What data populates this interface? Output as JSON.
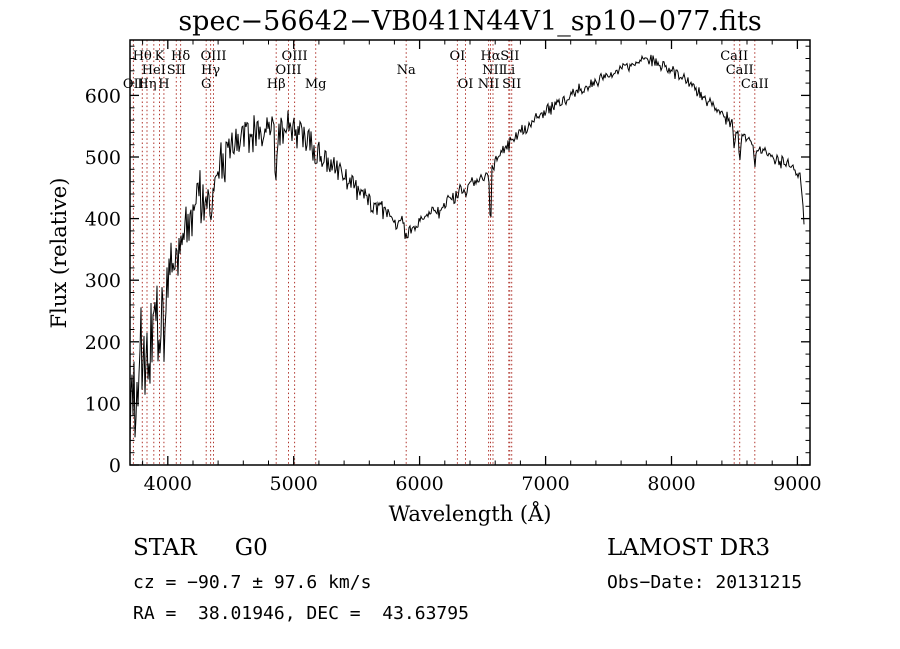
{
  "chart_data": {
    "type": "line",
    "title": "spec−56642−VB041N44V1_sp10−077.fits",
    "xlabel": "Wavelength (Å)",
    "ylabel": "Flux (relative)",
    "xlim": [
      3700,
      9100
    ],
    "ylim": [
      0,
      690
    ],
    "xticks": [
      4000,
      5000,
      6000,
      7000,
      8000,
      9000
    ],
    "yticks": [
      0,
      100,
      200,
      300,
      400,
      500,
      600
    ],
    "x_minor_step": 200,
    "y_minor_step": 20,
    "grid": false,
    "line_color": "#000000",
    "marker_color": "#b0342c",
    "noise_seed": 56642,
    "spectral_lines": [
      {
        "label": "OII",
        "wavelength": 3727,
        "row": 2
      },
      {
        "label": "Hθ",
        "wavelength": 3798,
        "row": 0
      },
      {
        "label": "Hη",
        "wavelength": 3835,
        "row": 2
      },
      {
        "label": "HeI",
        "wavelength": 3889,
        "row": 1
      },
      {
        "label": "K",
        "wavelength": 3934,
        "row": 0
      },
      {
        "label": "H",
        "wavelength": 3969,
        "row": 2
      },
      {
        "label": "SII",
        "wavelength": 4068,
        "row": 1
      },
      {
        "label": "Hδ",
        "wavelength": 4102,
        "row": 0
      },
      {
        "label": "G",
        "wavelength": 4305,
        "row": 2
      },
      {
        "label": "Hγ",
        "wavelength": 4340,
        "row": 1
      },
      {
        "label": "OIII",
        "wavelength": 4363,
        "row": 0
      },
      {
        "label": "Hβ",
        "wavelength": 4861,
        "row": 2
      },
      {
        "label": "OIII",
        "wavelength": 4959,
        "row": 1
      },
      {
        "label": "OIII",
        "wavelength": 5007,
        "row": 0
      },
      {
        "label": "Mg",
        "wavelength": 5175,
        "row": 2
      },
      {
        "label": "Na",
        "wavelength": 5893,
        "row": 1
      },
      {
        "label": "OI",
        "wavelength": 6300,
        "row": 0
      },
      {
        "label": "OI",
        "wavelength": 6364,
        "row": 2
      },
      {
        "label": "NII",
        "wavelength": 6548,
        "row": 2
      },
      {
        "label": "Hα",
        "wavelength": 6563,
        "row": 0
      },
      {
        "label": "NII",
        "wavelength": 6583,
        "row": 1
      },
      {
        "label": "Li",
        "wavelength": 6708,
        "row": 1
      },
      {
        "label": "SII",
        "wavelength": 6716,
        "row": 0
      },
      {
        "label": "SII",
        "wavelength": 6731,
        "row": 2
      },
      {
        "label": "CaII",
        "wavelength": 8498,
        "row": 0
      },
      {
        "label": "CaII",
        "wavelength": 8542,
        "row": 1
      },
      {
        "label": "CaII",
        "wavelength": 8662,
        "row": 2
      }
    ],
    "flux_points": [
      [
        3700,
        15
      ],
      [
        3715,
        90
      ],
      [
        3730,
        140
      ],
      [
        3745,
        110
      ],
      [
        3760,
        150
      ],
      [
        3780,
        165
      ],
      [
        3800,
        175
      ],
      [
        3830,
        180
      ],
      [
        3860,
        195
      ],
      [
        3900,
        235
      ],
      [
        3950,
        265
      ],
      [
        4000,
        300
      ],
      [
        4050,
        330
      ],
      [
        4100,
        370
      ],
      [
        4150,
        400
      ],
      [
        4200,
        418
      ],
      [
        4250,
        438
      ],
      [
        4300,
        452
      ],
      [
        4350,
        458
      ],
      [
        4400,
        472
      ],
      [
        4450,
        492
      ],
      [
        4500,
        508
      ],
      [
        4550,
        522
      ],
      [
        4600,
        545
      ],
      [
        4650,
        540
      ],
      [
        4700,
        536
      ],
      [
        4750,
        540
      ],
      [
        4800,
        546
      ],
      [
        4861,
        538
      ],
      [
        4900,
        550
      ],
      [
        4950,
        547
      ],
      [
        5000,
        542
      ],
      [
        5050,
        537
      ],
      [
        5100,
        528
      ],
      [
        5150,
        518
      ],
      [
        5200,
        508
      ],
      [
        5250,
        498
      ],
      [
        5300,
        488
      ],
      [
        5350,
        478
      ],
      [
        5400,
        468
      ],
      [
        5450,
        458
      ],
      [
        5500,
        448
      ],
      [
        5550,
        438
      ],
      [
        5600,
        428
      ],
      [
        5650,
        420
      ],
      [
        5700,
        412
      ],
      [
        5750,
        405
      ],
      [
        5800,
        398
      ],
      [
        5850,
        392
      ],
      [
        5900,
        387
      ],
      [
        5950,
        388
      ],
      [
        6000,
        393
      ],
      [
        6050,
        399
      ],
      [
        6100,
        406
      ],
      [
        6150,
        413
      ],
      [
        6200,
        421
      ],
      [
        6250,
        429
      ],
      [
        6300,
        437
      ],
      [
        6350,
        445
      ],
      [
        6400,
        453
      ],
      [
        6450,
        461
      ],
      [
        6500,
        469
      ],
      [
        6550,
        477
      ],
      [
        6600,
        492
      ],
      [
        6650,
        506
      ],
      [
        6700,
        519
      ],
      [
        6750,
        531
      ],
      [
        6800,
        541
      ],
      [
        6850,
        549
      ],
      [
        6900,
        557
      ],
      [
        6950,
        565
      ],
      [
        7000,
        573
      ],
      [
        7100,
        587
      ],
      [
        7200,
        600
      ],
      [
        7300,
        612
      ],
      [
        7400,
        623
      ],
      [
        7500,
        633
      ],
      [
        7600,
        642
      ],
      [
        7700,
        651
      ],
      [
        7800,
        657
      ],
      [
        7900,
        653
      ],
      [
        8000,
        641
      ],
      [
        8100,
        626
      ],
      [
        8200,
        609
      ],
      [
        8300,
        590
      ],
      [
        8400,
        570
      ],
      [
        8500,
        550
      ],
      [
        8600,
        530
      ],
      [
        8700,
        513
      ],
      [
        8800,
        500
      ],
      [
        8900,
        488
      ],
      [
        9000,
        477
      ],
      [
        9025,
        468
      ],
      [
        9045,
        420
      ],
      [
        9060,
        365
      ]
    ],
    "absorption_lines": [
      {
        "center": 3934,
        "depth": 60,
        "sigma": 8
      },
      {
        "center": 3969,
        "depth": 60,
        "sigma": 8
      },
      {
        "center": 4102,
        "depth": 55,
        "sigma": 9
      },
      {
        "center": 4340,
        "depth": 50,
        "sigma": 9
      },
      {
        "center": 4861,
        "depth": 75,
        "sigma": 8
      },
      {
        "center": 5175,
        "depth": 22,
        "sigma": 12
      },
      {
        "center": 5893,
        "depth": 22,
        "sigma": 10
      },
      {
        "center": 6563,
        "depth": 110,
        "sigma": 5
      },
      {
        "center": 8498,
        "depth": 28,
        "sigma": 8
      },
      {
        "center": 8542,
        "depth": 38,
        "sigma": 8
      },
      {
        "center": 8662,
        "depth": 32,
        "sigma": 8
      }
    ],
    "noise_envelope": [
      [
        3700,
        70
      ],
      [
        3800,
        62
      ],
      [
        3900,
        56
      ],
      [
        4000,
        52
      ],
      [
        4100,
        48
      ],
      [
        4200,
        44
      ],
      [
        4300,
        40
      ],
      [
        4400,
        35
      ],
      [
        4500,
        31
      ],
      [
        4700,
        27
      ],
      [
        5000,
        21
      ],
      [
        5300,
        16
      ],
      [
        5600,
        13
      ],
      [
        6000,
        10
      ],
      [
        6500,
        9
      ],
      [
        7000,
        8
      ],
      [
        7500,
        7
      ],
      [
        8000,
        7
      ],
      [
        8500,
        8
      ],
      [
        9000,
        8
      ]
    ]
  },
  "footer": {
    "object_type": "STAR",
    "subclass": "G0",
    "survey": "LAMOST DR3",
    "cz": "cz = −90.7 ± 97.6 km/s",
    "obs_date": "Obs−Date: 20131215",
    "radec": "RA =  38.01946, DEC =  43.63795"
  }
}
